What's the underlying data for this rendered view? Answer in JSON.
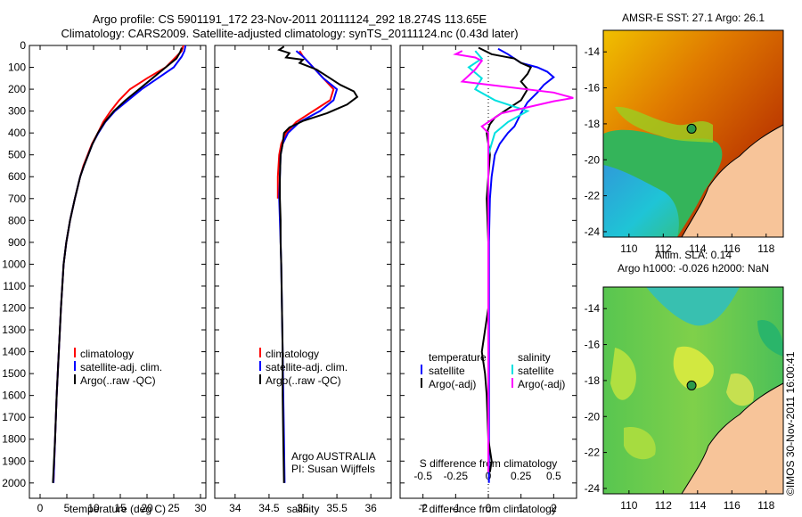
{
  "header": {
    "line1": "Argo profile: CS 5901191_172 23-Nov-2011 20111124_292 18.274S 113.65E",
    "line2": "Climatology: CARS2009. Satellite-adjusted climatology: synTS_20111124.nc (0.43d later)"
  },
  "colors": {
    "climatology": "#ff0000",
    "satellite": "#0000ff",
    "argo": "#000000",
    "sat_salinity": "#00e0e0",
    "argo_adj_salinity": "#ff00ff"
  },
  "chart_data": [
    {
      "type": "line",
      "id": "temperature",
      "xlabel": "temperature (deg C)",
      "ylabel": "",
      "xlim": [
        -2,
        31
      ],
      "ylim": [
        2070,
        0
      ],
      "x_ticks": [
        0,
        5,
        10,
        15,
        20,
        25,
        30
      ],
      "y_ticks": [
        0,
        100,
        200,
        300,
        400,
        500,
        600,
        700,
        800,
        900,
        1000,
        1100,
        1200,
        1300,
        1400,
        1500,
        1600,
        1700,
        1800,
        1900,
        2000
      ],
      "legend": [
        "climatology",
        "satellite-adj. clim.",
        "Argo(..raw -QC)"
      ],
      "series": [
        {
          "name": "climatology",
          "color": "#ff0000",
          "points": [
            [
              26.8,
              0
            ],
            [
              26.5,
              25
            ],
            [
              25.5,
              50
            ],
            [
              23.5,
              100
            ],
            [
              20,
              150
            ],
            [
              16.8,
              200
            ],
            [
              14.8,
              250
            ],
            [
              13.2,
              300
            ],
            [
              11.8,
              350
            ],
            [
              10.8,
              400
            ],
            [
              9.7,
              450
            ],
            [
              8.9,
              500
            ],
            [
              8.1,
              550
            ],
            [
              7.5,
              600
            ],
            [
              7.0,
              650
            ],
            [
              6.5,
              700
            ],
            [
              5.6,
              800
            ],
            [
              4.9,
              900
            ],
            [
              4.4,
              1000
            ],
            [
              3.9,
              1200
            ],
            [
              3.5,
              1400
            ],
            [
              3.1,
              1600
            ],
            [
              2.8,
              1800
            ],
            [
              2.5,
              2000
            ]
          ]
        },
        {
          "name": "satellite-adj. clim.",
          "color": "#0000ff",
          "points": [
            [
              27.2,
              0
            ],
            [
              27.0,
              25
            ],
            [
              26.5,
              50
            ],
            [
              25,
              100
            ],
            [
              22,
              150
            ],
            [
              19,
              200
            ],
            [
              16.5,
              250
            ],
            [
              14,
              300
            ],
            [
              12.2,
              350
            ],
            [
              10.9,
              400
            ],
            [
              9.8,
              450
            ],
            [
              9.0,
              500
            ],
            [
              8.2,
              550
            ],
            [
              7.5,
              600
            ],
            [
              7.0,
              650
            ],
            [
              6.5,
              700
            ],
            [
              5.6,
              800
            ],
            [
              4.9,
              900
            ],
            [
              4.4,
              1000
            ],
            [
              3.9,
              1200
            ],
            [
              3.5,
              1400
            ],
            [
              3.1,
              1600
            ],
            [
              2.8,
              1800
            ],
            [
              2.5,
              2000
            ]
          ]
        },
        {
          "name": "Argo(..raw -QC)",
          "color": "#000000",
          "points": [
            [
              26.5,
              10
            ],
            [
              26.2,
              30
            ],
            [
              25.5,
              60
            ],
            [
              23.5,
              100
            ],
            [
              21,
              150
            ],
            [
              18.5,
              200
            ],
            [
              16,
              250
            ],
            [
              13.8,
              300
            ],
            [
              12.1,
              350
            ],
            [
              10.8,
              400
            ],
            [
              9.8,
              450
            ],
            [
              9.0,
              500
            ],
            [
              8.2,
              550
            ],
            [
              7.5,
              600
            ],
            [
              7.0,
              650
            ],
            [
              6.5,
              700
            ],
            [
              5.6,
              800
            ],
            [
              4.9,
              900
            ],
            [
              4.4,
              1000
            ],
            [
              3.9,
              1200
            ],
            [
              3.5,
              1400
            ],
            [
              3.1,
              1600
            ],
            [
              2.8,
              1800
            ],
            [
              2.4,
              2000
            ]
          ]
        }
      ]
    },
    {
      "type": "line",
      "id": "salinity",
      "xlabel": "salinity",
      "ylabel": "",
      "xlim": [
        33.7,
        36.3
      ],
      "ylim": [
        2070,
        0
      ],
      "x_ticks": [
        34,
        34.5,
        35,
        35.5,
        36
      ],
      "legend": [
        "climatology",
        "satellite-adj. clim.",
        "Argo(..raw -QC)"
      ],
      "annotation": [
        "Argo AUSTRALIA",
        "PI: Susan Wijffels"
      ],
      "series": [
        {
          "name": "climatology",
          "color": "#ff0000",
          "points": [
            [
              34.95,
              25
            ],
            [
              35.0,
              50
            ],
            [
              35.15,
              100
            ],
            [
              35.3,
              150
            ],
            [
              35.45,
              200
            ],
            [
              35.4,
              250
            ],
            [
              35.15,
              300
            ],
            [
              34.9,
              350
            ],
            [
              34.75,
              400
            ],
            [
              34.68,
              450
            ],
            [
              34.65,
              500
            ],
            [
              34.63,
              600
            ],
            [
              34.63,
              700
            ]
          ]
        },
        {
          "name": "satellite-adj. clim.",
          "color": "#0000ff",
          "points": [
            [
              34.9,
              25
            ],
            [
              35.0,
              50
            ],
            [
              35.15,
              100
            ],
            [
              35.3,
              150
            ],
            [
              35.5,
              200
            ],
            [
              35.45,
              250
            ],
            [
              35.25,
              300
            ],
            [
              34.95,
              350
            ],
            [
              34.78,
              400
            ],
            [
              34.7,
              450
            ],
            [
              34.67,
              500
            ],
            [
              34.66,
              600
            ],
            [
              34.65,
              700
            ],
            [
              34.66,
              800
            ],
            [
              34.67,
              900
            ],
            [
              34.68,
              1000
            ],
            [
              34.69,
              1200
            ],
            [
              34.7,
              1400
            ],
            [
              34.71,
              1600
            ],
            [
              34.72,
              1800
            ],
            [
              34.73,
              2000
            ]
          ]
        },
        {
          "name": "Argo(..raw -QC)",
          "color": "#000000",
          "points": [
            [
              34.72,
              5
            ],
            [
              34.65,
              20
            ],
            [
              34.8,
              35
            ],
            [
              34.75,
              55
            ],
            [
              35.0,
              65
            ],
            [
              34.95,
              80
            ],
            [
              35.2,
              110
            ],
            [
              35.4,
              150
            ],
            [
              35.55,
              180
            ],
            [
              35.75,
              210
            ],
            [
              35.8,
              235
            ],
            [
              35.65,
              270
            ],
            [
              35.35,
              310
            ],
            [
              35.0,
              345
            ],
            [
              34.8,
              375
            ],
            [
              34.72,
              400
            ],
            [
              34.7,
              450
            ],
            [
              34.67,
              500
            ],
            [
              34.66,
              600
            ],
            [
              34.66,
              700
            ],
            [
              34.67,
              800
            ],
            [
              34.67,
              900
            ],
            [
              34.68,
              1000
            ],
            [
              34.69,
              1200
            ],
            [
              34.7,
              1400
            ],
            [
              34.7,
              1600
            ],
            [
              34.71,
              1800
            ],
            [
              34.72,
              2000
            ]
          ]
        }
      ]
    },
    {
      "type": "line",
      "id": "differences",
      "xlabel": "T difference from climatology",
      "x2label": "S difference from climatology",
      "xlim": [
        -2.7,
        2.7
      ],
      "ylim": [
        2070,
        0
      ],
      "x_ticks": [
        -2,
        -1,
        0,
        1,
        2
      ],
      "x2_ticks": [
        -0.5,
        -0.25,
        0,
        0.25,
        0.5
      ],
      "legend_temperature": [
        "temperature",
        "satellite",
        "Argo(-adj)"
      ],
      "legend_salinity": [
        "salinity",
        "satellite",
        "Argo(-adj)"
      ],
      "series": [
        {
          "name": "temperature satellite",
          "color": "#0000ff",
          "points": [
            [
              0.3,
              15
            ],
            [
              0.6,
              40
            ],
            [
              0.8,
              60
            ],
            [
              1.0,
              80
            ],
            [
              1.5,
              100
            ],
            [
              1.8,
              120
            ],
            [
              2.0,
              145
            ],
            [
              1.7,
              180
            ],
            [
              1.5,
              215
            ],
            [
              1.2,
              260
            ],
            [
              1.0,
              310
            ],
            [
              0.8,
              370
            ],
            [
              0.6,
              400
            ],
            [
              0.35,
              450
            ],
            [
              0.2,
              500
            ],
            [
              0.1,
              600
            ],
            [
              0.05,
              700
            ],
            [
              0.02,
              900
            ],
            [
              0.02,
              1200
            ],
            [
              0.02,
              1600
            ],
            [
              0.02,
              2000
            ]
          ]
        },
        {
          "name": "temperature Argo(-adj)",
          "color": "#000000",
          "points": [
            [
              -0.3,
              10
            ],
            [
              0.1,
              40
            ],
            [
              0.8,
              60
            ],
            [
              1.0,
              80
            ],
            [
              1.3,
              100
            ],
            [
              1.2,
              130
            ],
            [
              1.0,
              165
            ],
            [
              1.2,
              200
            ],
            [
              1.0,
              250
            ],
            [
              0.5,
              300
            ],
            [
              0.2,
              330
            ],
            [
              0.05,
              360
            ],
            [
              -0.05,
              400
            ],
            [
              0.05,
              500
            ],
            [
              0.0,
              600
            ],
            [
              -0.05,
              700
            ],
            [
              0.0,
              900
            ],
            [
              0.0,
              1200
            ],
            [
              -0.2,
              1400
            ],
            [
              -0.1,
              1500
            ],
            [
              -0.05,
              1600
            ],
            [
              0.0,
              1800
            ],
            [
              0.1,
              1900
            ],
            [
              0.05,
              1950
            ]
          ]
        },
        {
          "name": "salinity satellite",
          "color": "#00e0e0",
          "points": [
            [
              -0.1,
              25
            ],
            [
              -0.05,
              60
            ],
            [
              -0.15,
              100
            ],
            [
              -0.05,
              150
            ],
            [
              -0.1,
              200
            ],
            [
              0.05,
              250
            ],
            [
              0.3,
              300
            ],
            [
              0.15,
              350
            ],
            [
              0.05,
              400
            ],
            [
              0.0,
              500
            ],
            [
              0.0,
              800
            ],
            [
              0.0,
              1200
            ],
            [
              0.0,
              1600
            ],
            [
              0.0,
              1950
            ]
          ]
        },
        {
          "name": "salinity Argo(-adj)",
          "color": "#ff00ff",
          "points": [
            [
              -0.2,
              25
            ],
            [
              -0.25,
              40
            ],
            [
              -0.1,
              55
            ],
            [
              -0.05,
              70
            ],
            [
              -0.1,
              110
            ],
            [
              -0.2,
              165
            ],
            [
              0.5,
              215
            ],
            [
              0.65,
              240
            ],
            [
              0.5,
              255
            ],
            [
              0.1,
              310
            ],
            [
              -0.05,
              370
            ],
            [
              0.0,
              400
            ],
            [
              0.0,
              500
            ],
            [
              0.0,
              800
            ],
            [
              0.0,
              1200
            ],
            [
              0.0,
              1600
            ],
            [
              0.0,
              1950
            ]
          ]
        }
      ]
    },
    {
      "type": "heatmap",
      "id": "sst-map",
      "title": "AMSR-E SST: 27.1 Argo: 26.1",
      "xlim": [
        108.5,
        119
      ],
      "ylim": [
        -24.3,
        -12.8
      ],
      "x_ticks": [
        110,
        112,
        114,
        116,
        118
      ],
      "y_ticks": [
        -14,
        -16,
        -18,
        -20,
        -22,
        -24
      ],
      "argo_location": [
        113.65,
        -18.274
      ]
    },
    {
      "type": "heatmap",
      "id": "sla-map",
      "title": [
        "Altim. SLA: 0.14",
        "Argo h1000: -0.026 h2000: NaN"
      ],
      "xlim": [
        108.5,
        119
      ],
      "ylim": [
        -24.3,
        -12.8
      ],
      "x_ticks": [
        110,
        112,
        114,
        116,
        118
      ],
      "y_ticks": [
        -14,
        -16,
        -18,
        -20,
        -22,
        -24
      ],
      "argo_location": [
        113.65,
        -18.274
      ]
    }
  ],
  "watermark": "©IMOS 30-Nov-2011 16:00:41"
}
